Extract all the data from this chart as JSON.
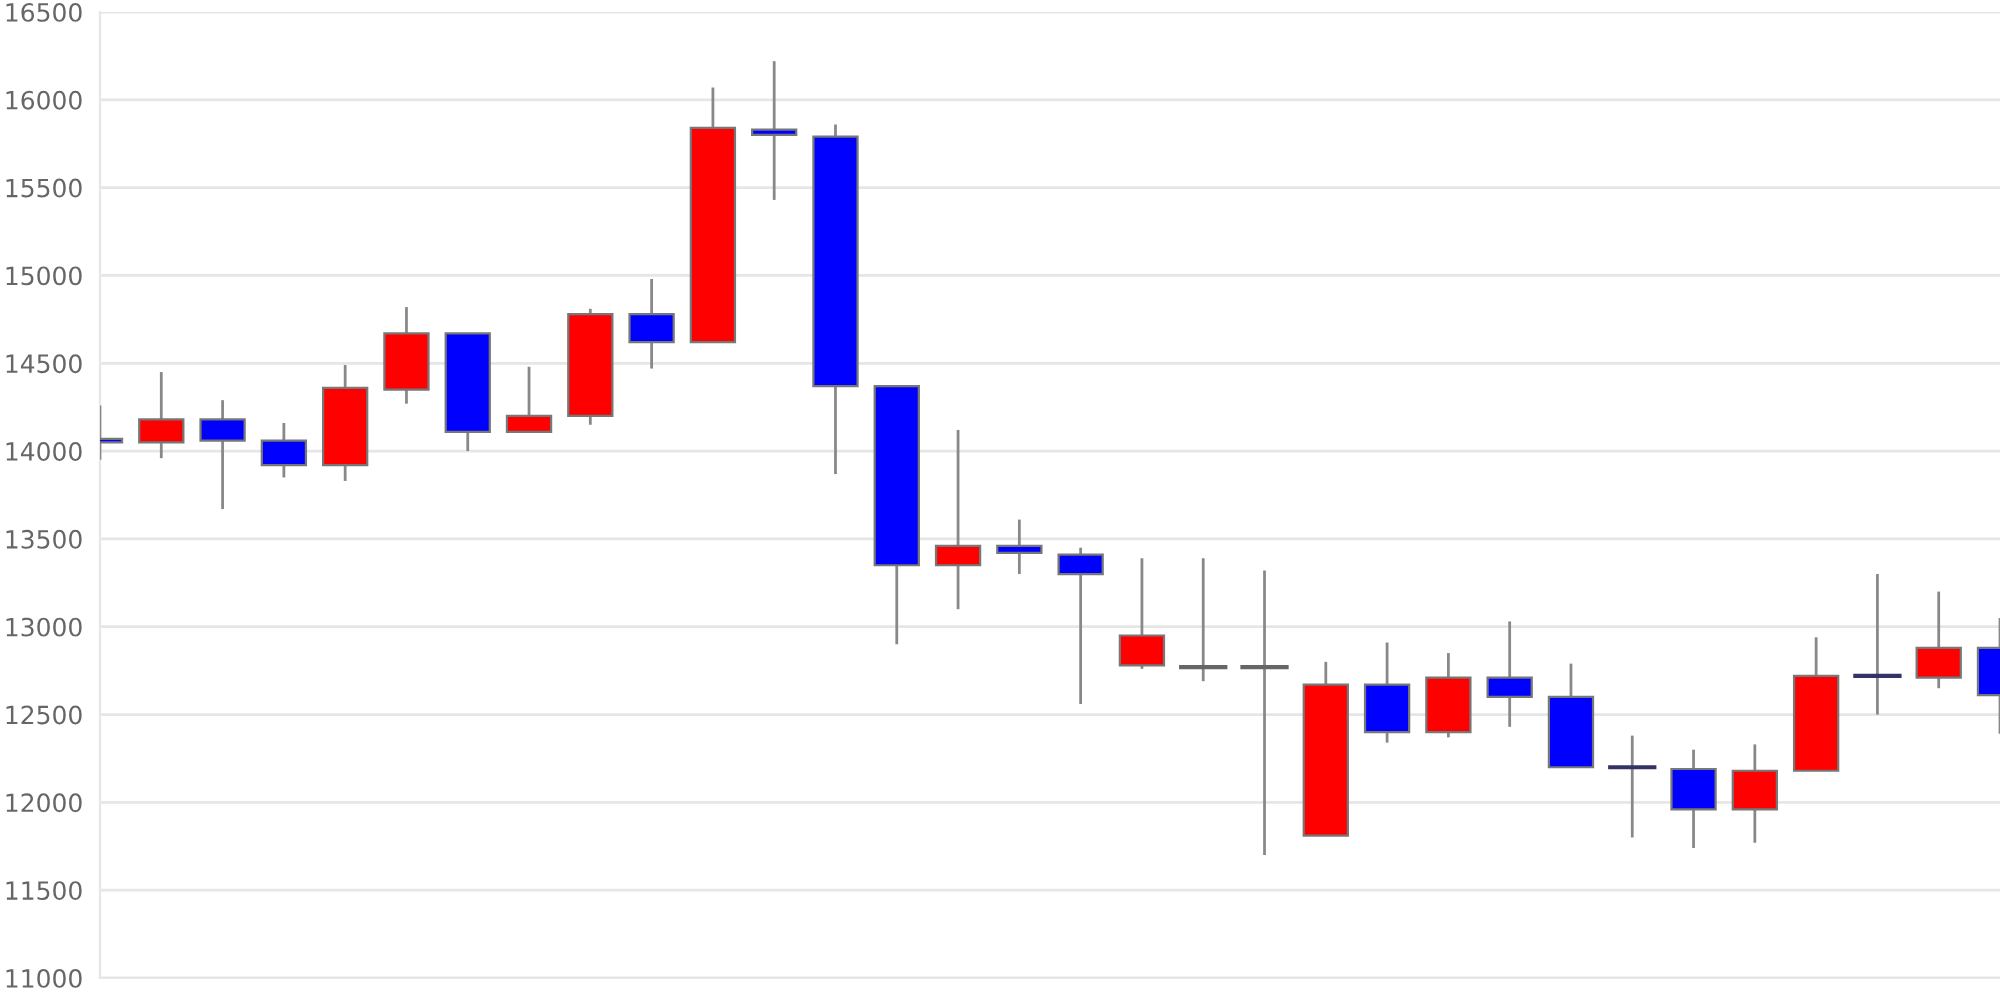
{
  "chart_data": {
    "type": "candlestick",
    "categories": [
      null,
      null,
      null,
      null,
      null,
      null,
      null,
      null,
      null,
      null,
      null,
      null,
      null,
      null,
      null,
      null,
      null,
      null,
      null,
      null,
      null,
      null,
      null,
      null,
      null,
      null,
      null,
      null,
      null,
      null,
      null,
      null
    ],
    "ohlc": [
      [
        14070,
        14260,
        13950,
        14050
      ],
      [
        14050,
        14450,
        13960,
        14180
      ],
      [
        14180,
        14290,
        13670,
        14060
      ],
      [
        14060,
        14160,
        13850,
        13920
      ],
      [
        13920,
        14490,
        13830,
        14360
      ],
      [
        14350,
        14820,
        14270,
        14670
      ],
      [
        14670,
        14670,
        14000,
        14110
      ],
      [
        14110,
        14480,
        14110,
        14200
      ],
      [
        14200,
        14810,
        14150,
        14780
      ],
      [
        14780,
        14980,
        14470,
        14620
      ],
      [
        14620,
        16070,
        14620,
        15840
      ],
      [
        15830,
        16220,
        15430,
        15800
      ],
      [
        15790,
        15860,
        13870,
        14370
      ],
      [
        14370,
        14370,
        12900,
        13350
      ],
      [
        13350,
        14120,
        13100,
        13460
      ],
      [
        13460,
        13610,
        13300,
        13420
      ],
      [
        13410,
        13450,
        12560,
        13300
      ],
      [
        12780,
        13390,
        12760,
        12950
      ],
      [
        12770,
        13390,
        12690,
        12770
      ],
      [
        12770,
        13320,
        11700,
        12770
      ],
      [
        11810,
        12800,
        11810,
        12670
      ],
      [
        12670,
        12910,
        12340,
        12400
      ],
      [
        12400,
        12850,
        12370,
        12710
      ],
      [
        12710,
        13030,
        12430,
        12600
      ],
      [
        12600,
        12790,
        12200,
        12200
      ],
      [
        12200,
        12380,
        11800,
        12200
      ],
      [
        12190,
        12300,
        11740,
        11960
      ],
      [
        11960,
        12330,
        11770,
        12180
      ],
      [
        12180,
        12940,
        12180,
        12720
      ],
      [
        12720,
        13300,
        12500,
        12720
      ],
      [
        12710,
        13200,
        12650,
        12880
      ],
      [
        12880,
        13050,
        12390,
        12610
      ]
    ],
    "colors": [
      "#0000ff",
      "#ff0000",
      "#0000ff",
      "#0000ff",
      "#ff0000",
      "#ff0000",
      "#0000ff",
      "#ff0000",
      "#ff0000",
      "#0000ff",
      "#ff0000",
      "#0000ff",
      "#0000ff",
      "#0000ff",
      "#ff0000",
      "#0000ff",
      "#0000ff",
      "#ff0000",
      "#666666",
      "#666666",
      "#ff0000",
      "#0000ff",
      "#ff0000",
      "#0000ff",
      "#0000ff",
      "#333366",
      "#0000ff",
      "#ff0000",
      "#ff0000",
      "#333366",
      "#ff0000",
      "#0000ff"
    ],
    "ylim": [
      11000,
      16500
    ],
    "yticks": [
      11000,
      11500,
      12000,
      12500,
      13000,
      13500,
      14000,
      14500,
      15000,
      15500,
      16000,
      16500
    ],
    "grid": "y",
    "tick_labels": "y"
  }
}
